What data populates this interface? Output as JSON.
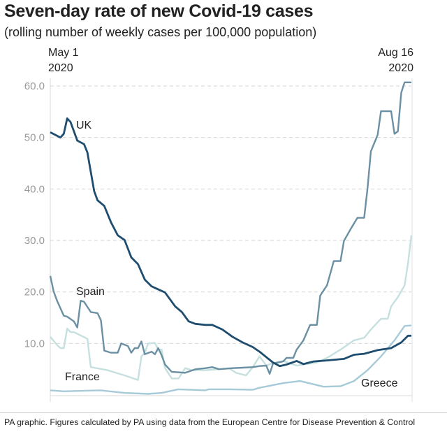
{
  "chart_data": {
    "type": "line",
    "title": "Seven-day rate of new Covid-19 cases",
    "subtitle": "(rolling number of weekly cases per 100,000 population)",
    "x_start_label": [
      "May 1",
      "2020"
    ],
    "x_end_label": [
      "Aug 16",
      "2020"
    ],
    "xlim": [
      "2020-05-01",
      "2020-08-16"
    ],
    "ylim": [
      0,
      60
    ],
    "y_ticks": [
      "10.0",
      "20.0",
      "30.0",
      "40.0",
      "50.0",
      "60.0"
    ],
    "y_tick_values": [
      10,
      20,
      30,
      40,
      50,
      60
    ],
    "grid": "horizontal-dashed",
    "series": [
      {
        "name": "France",
        "color": "#c5e0de",
        "points": [
          [
            "2020-05-01",
            11.3
          ],
          [
            "2020-05-03",
            9.7
          ],
          [
            "2020-05-04",
            9.1
          ],
          [
            "2020-05-05",
            9.1
          ],
          [
            "2020-05-06",
            12.9
          ],
          [
            "2020-05-07",
            12.2
          ],
          [
            "2020-05-08",
            12.2
          ],
          [
            "2020-05-12",
            10.9
          ],
          [
            "2020-05-13",
            5.4
          ],
          [
            "2020-05-18",
            4.8
          ],
          [
            "2020-05-23",
            3.8
          ],
          [
            "2020-05-27",
            2.9
          ],
          [
            "2020-05-28",
            7.5
          ],
          [
            "2020-05-29",
            8.2
          ],
          [
            "2020-05-30",
            10.0
          ],
          [
            "2020-06-01",
            10.1
          ],
          [
            "2020-06-02",
            8.8
          ],
          [
            "2020-06-03",
            8.8
          ],
          [
            "2020-06-04",
            5.2
          ],
          [
            "2020-06-06",
            3.2
          ],
          [
            "2020-06-08",
            3.2
          ],
          [
            "2020-06-10",
            5.2
          ],
          [
            "2020-06-12",
            4.8
          ],
          [
            "2020-06-16",
            4.8
          ],
          [
            "2020-06-20",
            5.0
          ],
          [
            "2020-06-23",
            5.2
          ],
          [
            "2020-06-25",
            4.3
          ],
          [
            "2020-06-28",
            3.8
          ],
          [
            "2020-06-30",
            5.4
          ],
          [
            "2020-07-02",
            7.5
          ],
          [
            "2020-07-04",
            5.7
          ],
          [
            "2020-07-06",
            6.2
          ],
          [
            "2020-07-09",
            6.6
          ],
          [
            "2020-07-13",
            5.7
          ],
          [
            "2020-07-16",
            6.0
          ],
          [
            "2020-07-19",
            6.3
          ],
          [
            "2020-07-22",
            7.2
          ],
          [
            "2020-07-26",
            8.8
          ],
          [
            "2020-07-30",
            10.6
          ],
          [
            "2020-08-02",
            11.1
          ],
          [
            "2020-08-04",
            12.7
          ],
          [
            "2020-08-07",
            14.8
          ],
          [
            "2020-08-09",
            14.8
          ],
          [
            "2020-08-10",
            17.2
          ],
          [
            "2020-08-12",
            19.0
          ],
          [
            "2020-08-14",
            21.3
          ],
          [
            "2020-08-15",
            25.6
          ],
          [
            "2020-08-16",
            31.0
          ]
        ]
      },
      {
        "name": "Greece",
        "color": "#a7cad8",
        "points": [
          [
            "2020-05-01",
            0.9
          ],
          [
            "2020-05-05",
            0.7
          ],
          [
            "2020-05-16",
            0.9
          ],
          [
            "2020-05-23",
            0.4
          ],
          [
            "2020-05-30",
            0.2
          ],
          [
            "2020-06-03",
            0.4
          ],
          [
            "2020-06-08",
            1.1
          ],
          [
            "2020-06-16",
            0.9
          ],
          [
            "2020-06-17",
            1.1
          ],
          [
            "2020-06-23",
            1.1
          ],
          [
            "2020-06-30",
            1.0
          ],
          [
            "2020-07-02",
            1.4
          ],
          [
            "2020-07-09",
            2.3
          ],
          [
            "2020-07-14",
            2.7
          ],
          [
            "2020-07-21",
            1.6
          ],
          [
            "2020-07-26",
            1.7
          ],
          [
            "2020-07-30",
            2.7
          ],
          [
            "2020-08-03",
            4.8
          ],
          [
            "2020-08-07",
            7.5
          ],
          [
            "2020-08-11",
            10.6
          ],
          [
            "2020-08-14",
            13.4
          ],
          [
            "2020-08-16",
            13.5
          ]
        ]
      },
      {
        "name": "Spain",
        "color": "#6b90a4",
        "points": [
          [
            "2020-05-01",
            23.1
          ],
          [
            "2020-05-02",
            20.1
          ],
          [
            "2020-05-03",
            18.3
          ],
          [
            "2020-05-05",
            15.4
          ],
          [
            "2020-05-06",
            15.2
          ],
          [
            "2020-05-08",
            14.3
          ],
          [
            "2020-05-09",
            13.1
          ],
          [
            "2020-05-10",
            18.3
          ],
          [
            "2020-05-11",
            18.1
          ],
          [
            "2020-05-13",
            16.1
          ],
          [
            "2020-05-15",
            15.9
          ],
          [
            "2020-05-16",
            14.5
          ],
          [
            "2020-05-17",
            8.6
          ],
          [
            "2020-05-19",
            8.2
          ],
          [
            "2020-05-21",
            8.2
          ],
          [
            "2020-05-22",
            10.0
          ],
          [
            "2020-05-24",
            9.5
          ],
          [
            "2020-05-25",
            8.2
          ],
          [
            "2020-05-26",
            9.1
          ],
          [
            "2020-05-27",
            9.1
          ],
          [
            "2020-05-28",
            10.4
          ],
          [
            "2020-05-29",
            7.9
          ],
          [
            "2020-05-31",
            8.4
          ],
          [
            "2020-06-01",
            7.9
          ],
          [
            "2020-06-02",
            9.1
          ],
          [
            "2020-06-03",
            7.7
          ],
          [
            "2020-06-04",
            5.9
          ],
          [
            "2020-06-06",
            4.5
          ],
          [
            "2020-06-10",
            4.3
          ],
          [
            "2020-06-13",
            5.0
          ],
          [
            "2020-06-16",
            5.2
          ],
          [
            "2020-06-18",
            5.4
          ],
          [
            "2020-06-20",
            5.0
          ],
          [
            "2020-06-24",
            5.2
          ],
          [
            "2020-06-27",
            5.3
          ],
          [
            "2020-06-30",
            5.4
          ],
          [
            "2020-07-02",
            5.6
          ],
          [
            "2020-07-04",
            5.7
          ],
          [
            "2020-07-05",
            4.1
          ],
          [
            "2020-07-06",
            6.1
          ],
          [
            "2020-07-09",
            6.5
          ],
          [
            "2020-07-10",
            7.2
          ],
          [
            "2020-07-12",
            7.2
          ],
          [
            "2020-07-13",
            8.8
          ],
          [
            "2020-07-15",
            10.6
          ],
          [
            "2020-07-17",
            13.6
          ],
          [
            "2020-07-19",
            13.6
          ],
          [
            "2020-07-20",
            19.3
          ],
          [
            "2020-07-22",
            21.3
          ],
          [
            "2020-07-24",
            26.0
          ],
          [
            "2020-07-26",
            26.0
          ],
          [
            "2020-07-27",
            29.9
          ],
          [
            "2020-07-29",
            32.2
          ],
          [
            "2020-07-31",
            34.4
          ],
          [
            "2020-08-02",
            34.4
          ],
          [
            "2020-08-03",
            40.1
          ],
          [
            "2020-08-04",
            47.3
          ],
          [
            "2020-08-06",
            50.5
          ],
          [
            "2020-08-07",
            55.1
          ],
          [
            "2020-08-10",
            55.1
          ],
          [
            "2020-08-11",
            50.7
          ],
          [
            "2020-08-12",
            51.2
          ],
          [
            "2020-08-13",
            58.7
          ],
          [
            "2020-08-14",
            60.7
          ],
          [
            "2020-08-16",
            60.7
          ]
        ]
      },
      {
        "name": "UK",
        "color": "#1f4d6f",
        "points": [
          [
            "2020-05-01",
            51.0
          ],
          [
            "2020-05-04",
            50.0
          ],
          [
            "2020-05-05",
            50.7
          ],
          [
            "2020-05-06",
            53.7
          ],
          [
            "2020-05-07",
            53.0
          ],
          [
            "2020-05-09",
            49.4
          ],
          [
            "2020-05-11",
            48.7
          ],
          [
            "2020-05-12",
            47.1
          ],
          [
            "2020-05-14",
            39.6
          ],
          [
            "2020-05-15",
            37.8
          ],
          [
            "2020-05-17",
            36.7
          ],
          [
            "2020-05-19",
            33.5
          ],
          [
            "2020-05-21",
            31.0
          ],
          [
            "2020-05-23",
            30.1
          ],
          [
            "2020-05-25",
            26.7
          ],
          [
            "2020-05-27",
            25.4
          ],
          [
            "2020-05-29",
            22.4
          ],
          [
            "2020-05-31",
            21.1
          ],
          [
            "2020-06-01",
            20.8
          ],
          [
            "2020-06-04",
            19.9
          ],
          [
            "2020-06-07",
            17.2
          ],
          [
            "2020-06-09",
            16.1
          ],
          [
            "2020-06-11",
            14.3
          ],
          [
            "2020-06-13",
            13.8
          ],
          [
            "2020-06-16",
            13.6
          ],
          [
            "2020-06-18",
            13.6
          ],
          [
            "2020-06-21",
            12.7
          ],
          [
            "2020-06-24",
            11.3
          ],
          [
            "2020-06-27",
            10.2
          ],
          [
            "2020-06-30",
            9.3
          ],
          [
            "2020-07-02",
            8.4
          ],
          [
            "2020-07-06",
            6.3
          ],
          [
            "2020-07-08",
            5.6
          ],
          [
            "2020-07-10",
            5.9
          ],
          [
            "2020-07-13",
            6.6
          ],
          [
            "2020-07-15",
            6.0
          ],
          [
            "2020-07-18",
            6.5
          ],
          [
            "2020-07-22",
            6.7
          ],
          [
            "2020-07-27",
            7.0
          ],
          [
            "2020-07-30",
            7.8
          ],
          [
            "2020-08-02",
            8.0
          ],
          [
            "2020-08-06",
            8.7
          ],
          [
            "2020-08-10",
            9.1
          ],
          [
            "2020-08-13",
            10.2
          ],
          [
            "2020-08-15",
            11.5
          ],
          [
            "2020-08-16",
            11.5
          ]
        ]
      }
    ]
  },
  "footer": "PA graphic. Figures calculated by PA using data from the European Centre for Disease Prevention & Control"
}
